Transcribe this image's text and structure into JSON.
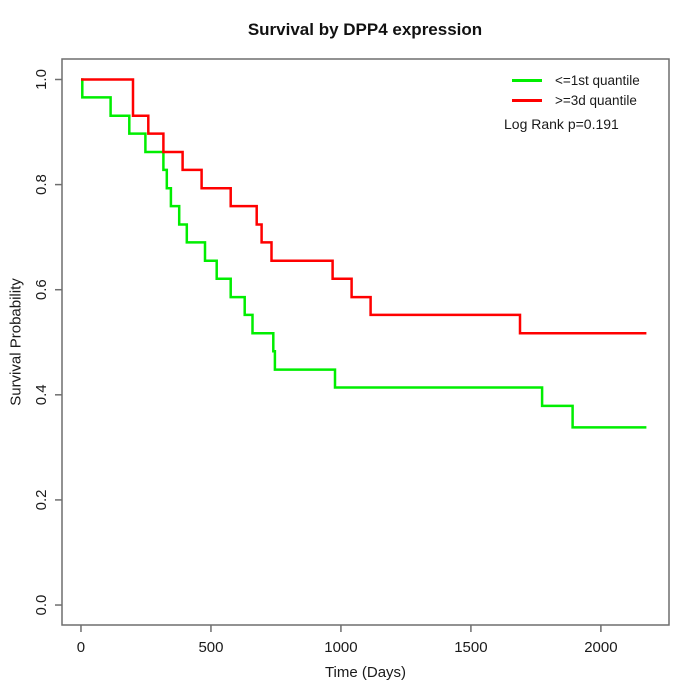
{
  "chart_data": {
    "type": "line",
    "subtype": "kaplan-meier-step",
    "title": "Survival by DPP4 expression",
    "xlabel": "Time (Days)",
    "ylabel": "Survival Probability",
    "xlim": [
      -73,
      2262
    ],
    "ylim": [
      -0.038,
      1.039
    ],
    "x_ticks": [
      0,
      500,
      1000,
      1500,
      2000
    ],
    "x_tick_labels": [
      "0",
      "500",
      "1000",
      "1500",
      "2000"
    ],
    "y_ticks": [
      0.0,
      0.2,
      0.4,
      0.6,
      0.8,
      1.0
    ],
    "y_tick_labels": [
      "0.0",
      "0.2",
      "0.4",
      "0.6",
      "0.8",
      "1.0"
    ],
    "grid": false,
    "legend_position": "top-right",
    "annotations": [
      "Log Rank p=0.191"
    ],
    "log_rank_p": 0.191,
    "frame_color": "#6e6e6e",
    "text_color": "#1a1a1a",
    "series": [
      {
        "name": "<=1st quantile",
        "color": "#00ee00",
        "start": [
          0,
          1.0
        ],
        "end_time": 2175,
        "steps": [
          [
            5,
            0.966
          ],
          [
            114,
            0.931
          ],
          [
            186,
            0.897
          ],
          [
            248,
            0.862
          ],
          [
            317,
            0.828
          ],
          [
            330,
            0.793
          ],
          [
            346,
            0.759
          ],
          [
            378,
            0.724
          ],
          [
            407,
            0.69
          ],
          [
            477,
            0.655
          ],
          [
            522,
            0.621
          ],
          [
            576,
            0.586
          ],
          [
            630,
            0.552
          ],
          [
            660,
            0.517
          ],
          [
            740,
            0.483
          ],
          [
            746,
            0.448
          ],
          [
            977,
            0.414
          ],
          [
            1774,
            0.379
          ],
          [
            1891,
            0.338
          ]
        ]
      },
      {
        "name": ">=3d quantile",
        "color": "#ff0000",
        "start": [
          0,
          1.0
        ],
        "end_time": 2175,
        "steps": [
          [
            200,
            0.931
          ],
          [
            259,
            0.897
          ],
          [
            317,
            0.862
          ],
          [
            391,
            0.828
          ],
          [
            464,
            0.793
          ],
          [
            576,
            0.759
          ],
          [
            676,
            0.724
          ],
          [
            695,
            0.69
          ],
          [
            733,
            0.655
          ],
          [
            968,
            0.621
          ],
          [
            1041,
            0.586
          ],
          [
            1114,
            0.552
          ],
          [
            1689,
            0.517
          ]
        ]
      }
    ]
  }
}
